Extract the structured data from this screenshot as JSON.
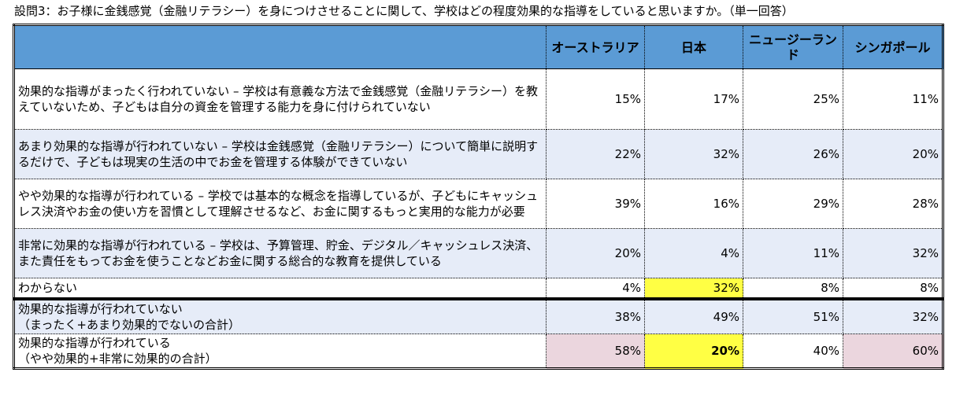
{
  "title": "設問3：お子様に金銭感覚（金融リテラシー）を身につけさせることに関して、学校はどの程度効果的な指導をしていると思いますか。（単一回答）",
  "columns": [
    "オーストラリア",
    "日本",
    "ニュージーランド",
    "シンガポール"
  ],
  "rows": [
    {
      "label": "効果的な指導がまったく行われていない – 学校は有意義な方法で金銭感覚（金融リテラシー）を教えていないため、子どもは自分の資金を管理する能力を身に付けられていない",
      "values": [
        "15%",
        "17%",
        "25%",
        "11%"
      ]
    },
    {
      "label": "あまり効果的な指導が行われていない – 学校は金銭感覚（金融リテラシー）について簡単に説明するだけで、子どもは現実の生活の中でお金を管理する体験ができていない",
      "values": [
        "22%",
        "32%",
        "26%",
        "20%"
      ]
    },
    {
      "label": "やや効果的な指導が行われている – 学校では基本的な概念を指導しているが、子どもにキャッシュレス決済やお金の使い方を習慣として理解させるなど、お金に関するもっと実用的な能力が必要",
      "values": [
        "39%",
        "16%",
        "29%",
        "28%"
      ]
    },
    {
      "label": "非常に効果的な指導が行われている – 学校は、予算管理、貯金、デジタル／キャッシュレス決済、また責任をもってお金を使うことなどお金に関する総合的な教育を提供している",
      "values": [
        "20%",
        "4%",
        "11%",
        "32%"
      ]
    },
    {
      "label": "わからない",
      "values": [
        "4%",
        "32%",
        "8%",
        "8%"
      ]
    }
  ],
  "summary_rows": [
    {
      "label_line1": "効果的な指導が行われていない",
      "label_line2": "（まったく+あまり効果的でないの合計）",
      "values": [
        "38%",
        "49%",
        "51%",
        "32%"
      ]
    },
    {
      "label_line1": "効果的な指導が行われている",
      "label_line2": "（やや効果的+非常に効果的の合計）",
      "values": [
        "58%",
        "20%",
        "40%",
        "60%"
      ]
    }
  ],
  "highlight_colors": {
    "header": "#5b9bd5",
    "alt_row": "#e6ecf8",
    "yellow": "#ffff44",
    "pink": "#ebd6de"
  }
}
